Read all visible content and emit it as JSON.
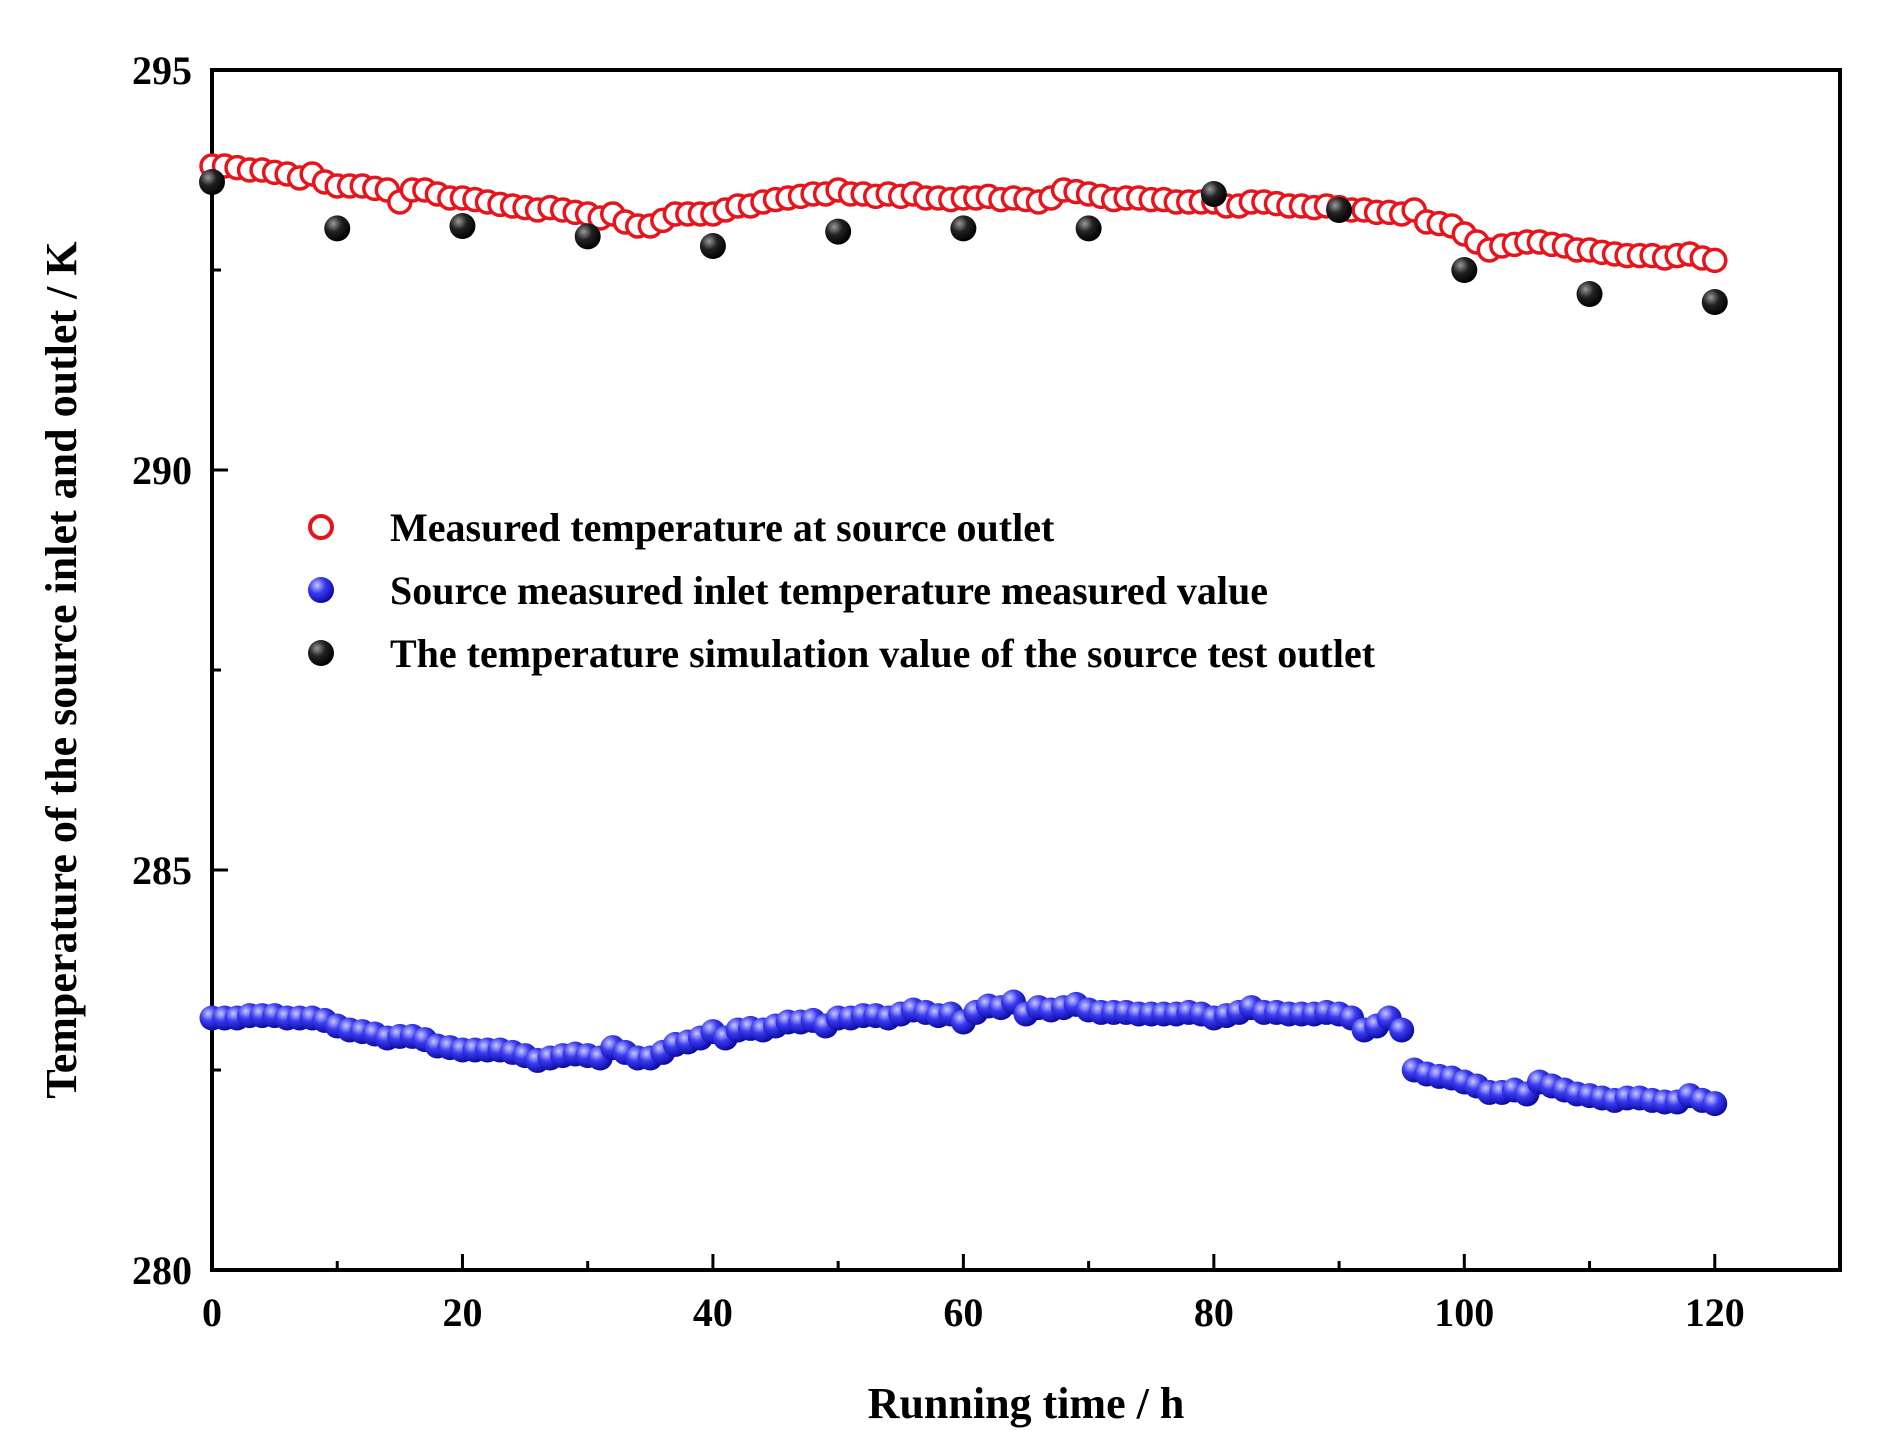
{
  "chart_data": {
    "type": "scatter",
    "title": "",
    "xlabel": "Running time / h",
    "ylabel": "Temperature of the source inlet and outlet / K",
    "xlim": [
      0,
      130
    ],
    "ylim": [
      280,
      295
    ],
    "xticks": [
      0,
      20,
      40,
      60,
      80,
      100,
      120
    ],
    "yticks": [
      280,
      285,
      290,
      295
    ],
    "xtick_labels": [
      "0",
      "20",
      "40",
      "60",
      "80",
      "100",
      "120"
    ],
    "ytick_labels": [
      "280",
      "285",
      "290",
      "295"
    ],
    "grid": false,
    "legend_position": "center-left",
    "series": [
      {
        "name": "Measured temperature at source outlet",
        "marker": "open-circle",
        "color": "#e8141c",
        "x": [
          0,
          1,
          2,
          3,
          4,
          5,
          6,
          7,
          8,
          9,
          10,
          11,
          12,
          13,
          14,
          15,
          16,
          17,
          18,
          19,
          20,
          21,
          22,
          23,
          24,
          25,
          26,
          27,
          28,
          29,
          30,
          31,
          32,
          33,
          34,
          35,
          36,
          37,
          38,
          39,
          40,
          41,
          42,
          43,
          44,
          45,
          46,
          47,
          48,
          49,
          50,
          51,
          52,
          53,
          54,
          55,
          56,
          57,
          58,
          59,
          60,
          61,
          62,
          63,
          64,
          65,
          66,
          67,
          68,
          69,
          70,
          71,
          72,
          73,
          74,
          75,
          76,
          77,
          78,
          79,
          80,
          81,
          82,
          83,
          84,
          85,
          86,
          87,
          88,
          89,
          90,
          91,
          92,
          93,
          94,
          95,
          96,
          97,
          98,
          99,
          100,
          101,
          102,
          103,
          104,
          105,
          106,
          107,
          108,
          109,
          110,
          111,
          112,
          113,
          114,
          115,
          116,
          117,
          118,
          119,
          120
        ],
        "y": [
          293.8,
          293.8,
          293.78,
          293.75,
          293.75,
          293.72,
          293.7,
          293.65,
          293.7,
          293.6,
          293.55,
          293.55,
          293.55,
          293.52,
          293.5,
          293.35,
          293.5,
          293.5,
          293.45,
          293.4,
          293.4,
          293.38,
          293.35,
          293.32,
          293.3,
          293.28,
          293.25,
          293.28,
          293.25,
          293.22,
          293.2,
          293.15,
          293.2,
          293.1,
          293.05,
          293.05,
          293.12,
          293.2,
          293.2,
          293.2,
          293.2,
          293.25,
          293.3,
          293.3,
          293.35,
          293.38,
          293.4,
          293.42,
          293.45,
          293.45,
          293.5,
          293.45,
          293.45,
          293.42,
          293.45,
          293.42,
          293.45,
          293.4,
          293.4,
          293.38,
          293.4,
          293.4,
          293.42,
          293.38,
          293.4,
          293.38,
          293.35,
          293.4,
          293.5,
          293.48,
          293.45,
          293.42,
          293.38,
          293.4,
          293.4,
          293.38,
          293.38,
          293.35,
          293.35,
          293.35,
          293.35,
          293.3,
          293.3,
          293.35,
          293.35,
          293.33,
          293.3,
          293.3,
          293.28,
          293.3,
          293.28,
          293.25,
          293.25,
          293.22,
          293.22,
          293.2,
          293.25,
          293.1,
          293.08,
          293.05,
          292.95,
          292.85,
          292.75,
          292.8,
          292.82,
          292.85,
          292.85,
          292.82,
          292.8,
          292.75,
          292.75,
          292.72,
          292.7,
          292.68,
          292.68,
          292.68,
          292.65,
          292.68,
          292.7,
          292.65,
          292.62
        ]
      },
      {
        "name": "Source measured inlet temperature measured value",
        "marker": "filled-circle",
        "color": "#2020e0",
        "x": [
          0,
          1,
          2,
          3,
          4,
          5,
          6,
          7,
          8,
          9,
          10,
          11,
          12,
          13,
          14,
          15,
          16,
          17,
          18,
          19,
          20,
          21,
          22,
          23,
          24,
          25,
          26,
          27,
          28,
          29,
          30,
          31,
          32,
          33,
          34,
          35,
          36,
          37,
          38,
          39,
          40,
          41,
          42,
          43,
          44,
          45,
          46,
          47,
          48,
          49,
          50,
          51,
          52,
          53,
          54,
          55,
          56,
          57,
          58,
          59,
          60,
          61,
          62,
          63,
          64,
          65,
          66,
          67,
          68,
          69,
          70,
          71,
          72,
          73,
          74,
          75,
          76,
          77,
          78,
          79,
          80,
          81,
          82,
          83,
          84,
          85,
          86,
          87,
          88,
          89,
          90,
          91,
          92,
          93,
          94,
          95,
          96,
          97,
          98,
          99,
          100,
          101,
          102,
          103,
          104,
          105,
          106,
          107,
          108,
          109,
          110,
          111,
          112,
          113,
          114,
          115,
          116,
          117,
          118,
          119,
          120
        ],
        "y": [
          283.15,
          283.15,
          283.15,
          283.18,
          283.18,
          283.18,
          283.15,
          283.15,
          283.15,
          283.12,
          283.05,
          283.0,
          282.98,
          282.95,
          282.9,
          282.92,
          282.92,
          282.88,
          282.8,
          282.78,
          282.75,
          282.75,
          282.75,
          282.75,
          282.72,
          282.68,
          282.62,
          282.65,
          282.68,
          282.7,
          282.68,
          282.65,
          282.78,
          282.72,
          282.65,
          282.65,
          282.72,
          282.82,
          282.85,
          282.9,
          282.98,
          282.9,
          283.0,
          283.02,
          283.0,
          283.05,
          283.1,
          283.1,
          283.12,
          283.05,
          283.15,
          283.15,
          283.18,
          283.18,
          283.15,
          283.2,
          283.25,
          283.22,
          283.18,
          283.2,
          283.1,
          283.22,
          283.3,
          283.28,
          283.35,
          283.2,
          283.28,
          283.25,
          283.28,
          283.32,
          283.25,
          283.22,
          283.22,
          283.22,
          283.2,
          283.2,
          283.2,
          283.2,
          283.22,
          283.2,
          283.15,
          283.18,
          283.22,
          283.28,
          283.22,
          283.22,
          283.2,
          283.2,
          283.2,
          283.22,
          283.2,
          283.15,
          283.0,
          283.05,
          283.15,
          283.0,
          282.5,
          282.45,
          282.42,
          282.4,
          282.35,
          282.3,
          282.22,
          282.22,
          282.25,
          282.2,
          282.35,
          282.3,
          282.25,
          282.2,
          282.18,
          282.15,
          282.12,
          282.15,
          282.15,
          282.12,
          282.1,
          282.1,
          282.18,
          282.12,
          282.08
        ]
      },
      {
        "name": "The temperature simulation value of the source test outlet",
        "marker": "filled-circle",
        "color": "#111111",
        "x": [
          0,
          10,
          20,
          30,
          40,
          50,
          60,
          70,
          80,
          90,
          100,
          110,
          120
        ],
        "y": [
          293.6,
          293.02,
          293.05,
          292.92,
          292.8,
          292.98,
          293.02,
          293.02,
          293.45,
          293.25,
          292.5,
          292.2,
          292.1
        ]
      }
    ]
  }
}
